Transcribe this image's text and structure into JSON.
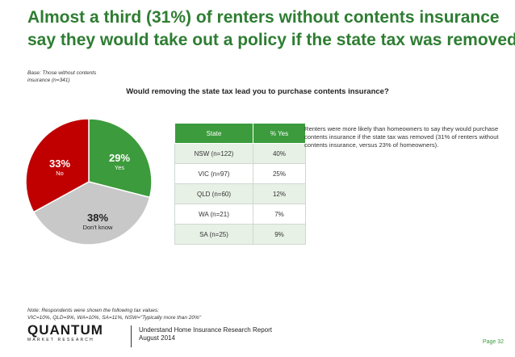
{
  "title": {
    "line1": "Almost a third (31%) of renters without contents insurance",
    "line2": "say they would take out a policy if the state tax was removed"
  },
  "base_note": {
    "line1": "Base: Those without contents",
    "line2": "insurance (n=341)"
  },
  "question": "Would removing the state tax lead you to purchase contents insurance?",
  "chart_data": {
    "type": "pie",
    "categories": [
      "Yes",
      "Don't know",
      "No"
    ],
    "values": [
      29,
      38,
      33
    ],
    "labels": [
      "29%",
      "38%",
      "33%"
    ],
    "colors": [
      "#3c9b3c",
      "#c8c8c8",
      "#c00000"
    ]
  },
  "table": {
    "headers": [
      "State",
      "% Yes"
    ],
    "rows": [
      [
        "NSW (n=122)",
        "40%"
      ],
      [
        "VIC (n=97)",
        "25%"
      ],
      [
        "QLD (n=60)",
        "12%"
      ],
      [
        "WA (n=21)",
        "7%"
      ],
      [
        "SA (n=25)",
        "9%"
      ]
    ]
  },
  "bullet": "Renters were more likely than homeowners to say they would purchase contents insurance if the state tax was removed (31% of renters without contents insurance, versus 23% of homeowners).",
  "footnote": {
    "line1": "Note: Respondents were shown the following tax values:",
    "line2": "VIC=10%, QLD=9%, WA=10%, SA=11%, NSW=\"Typically more than 20%\""
  },
  "logo": {
    "wordmark": "QUANTUM",
    "subtitle": "MARKET RESEARCH"
  },
  "report": {
    "line1": "Understand Home Insurance Research Report",
    "line2": "August 2014"
  },
  "page_number": "Page 32"
}
